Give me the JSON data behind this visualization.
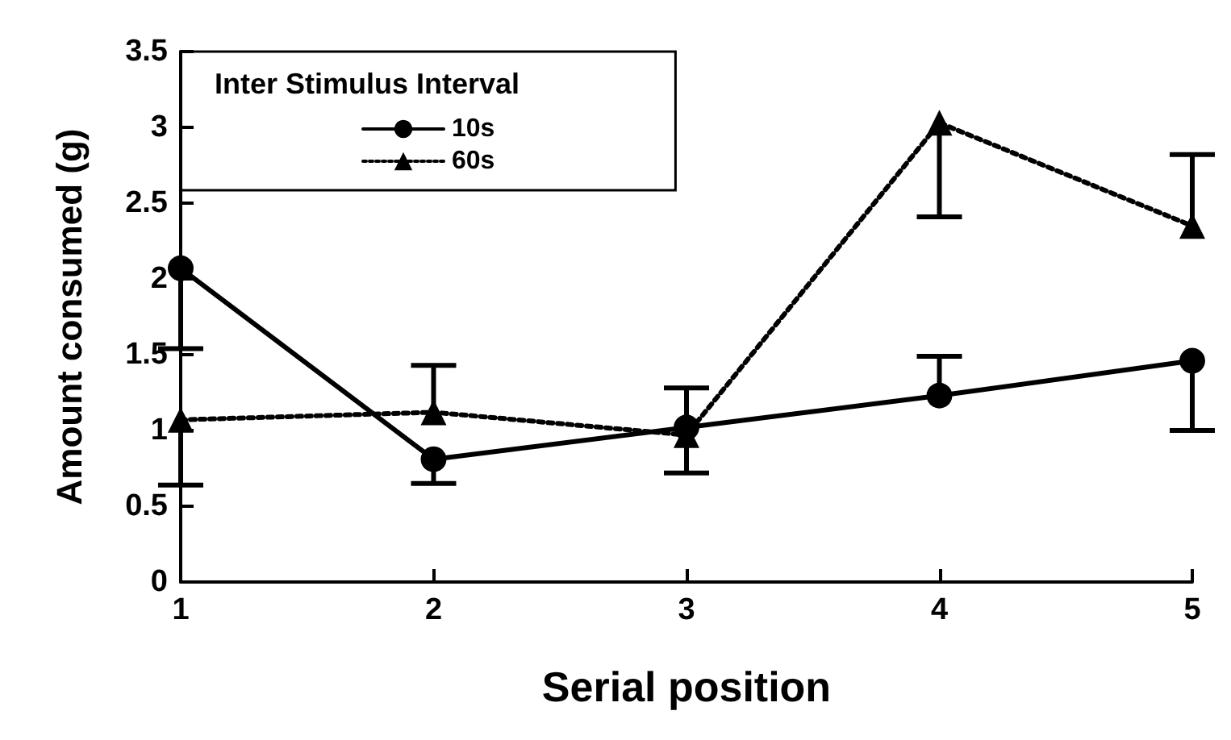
{
  "chart_data": {
    "type": "line",
    "xlabel": "Serial position",
    "ylabel": "Amount consumed (g)",
    "legend_title": "Inter Stimulus Interval",
    "legend": "top left",
    "grid": false,
    "x": [
      1,
      2,
      3,
      4,
      5
    ],
    "xlim": [
      1,
      5
    ],
    "xticks": [
      1,
      2,
      3,
      4,
      5
    ],
    "ylim": [
      0,
      3.5
    ],
    "yticks": [
      0,
      0.5,
      1,
      1.5,
      2,
      2.5,
      3,
      3.5
    ],
    "series": [
      {
        "name": "10s",
        "color": "#000000",
        "marker": "circle",
        "line_style": "solid",
        "values": [
          2.07,
          0.81,
          1.02,
          1.23,
          1.46
        ],
        "errors": [
          [
            1.54,
            2.07
          ],
          [
            0.65,
            0.81
          ],
          [
            1.02,
            1.28
          ],
          [
            1.23,
            1.49
          ],
          [
            1.0,
            1.46
          ]
        ]
      },
      {
        "name": "60s",
        "color": "#000000",
        "marker": "triangle",
        "line_style": "dotted",
        "values": [
          1.07,
          1.12,
          0.97,
          3.03,
          2.35
        ],
        "errors": [
          [
            0.64,
            1.07
          ],
          [
            1.12,
            1.43
          ],
          [
            0.72,
            0.97
          ],
          [
            2.41,
            3.03
          ],
          [
            2.35,
            2.82
          ]
        ]
      }
    ]
  }
}
